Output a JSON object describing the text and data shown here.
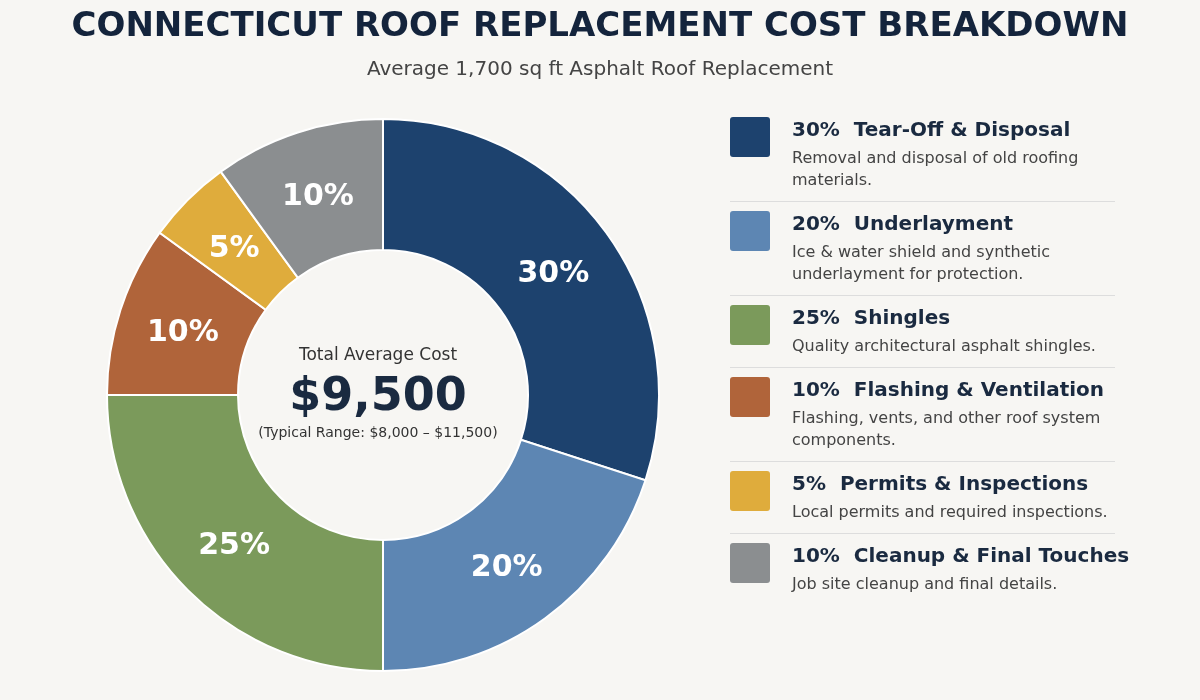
{
  "chart_data": {
    "type": "donut",
    "title": "CONNECTICUT ROOF REPLACEMENT COST BREAKDOWN",
    "subtitle": "Average 1,700 sq ft Asphalt Roof Replacement",
    "categories": [
      "Tear-Off & Disposal",
      "Underlayment",
      "Shingles",
      "Flashing & Ventilation",
      "Permits & Inspections",
      "Cleanup & Final Touches"
    ],
    "values": [
      30,
      20,
      25,
      10,
      5,
      10
    ],
    "colors": [
      "#1d426e",
      "#5d86b3",
      "#7b9a5b",
      "#b0643a",
      "#dfac3c",
      "#8b8e90"
    ],
    "value_labels": [
      "30%",
      "20%",
      "25%",
      "10%",
      "5%",
      "10%"
    ],
    "legend": "right",
    "annotations": [
      "Total Average Cost",
      "$9,500",
      "(Typical Range: $8,000 – $11,500)",
      "Removal and disposal of old roofing materials.",
      "Ice & water shield and synthetic underlayment for protection.",
      "Quality architectural asphalt shingles.",
      "Flashing, vents, and other roof system components.",
      "Local permits and required inspections.",
      "Job site cleanup and final details."
    ]
  }
}
